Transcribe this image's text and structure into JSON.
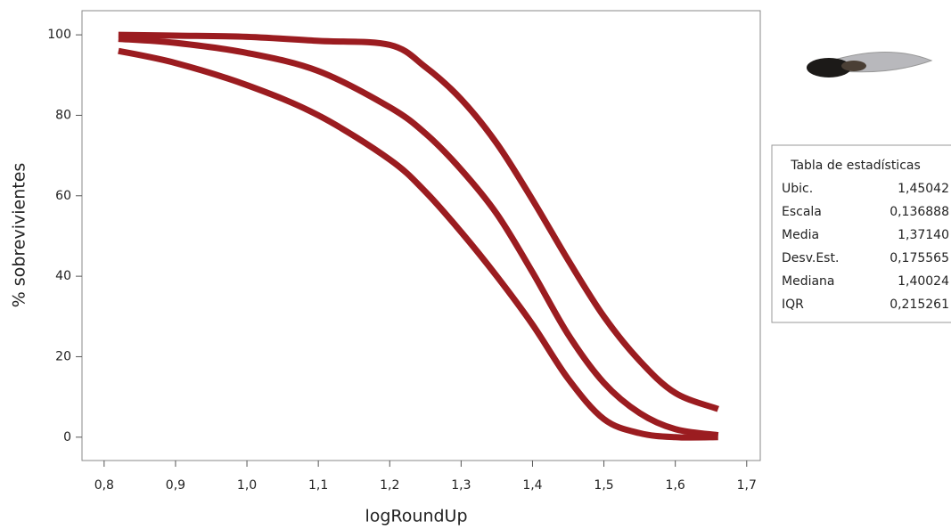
{
  "chart_data": {
    "type": "line",
    "xlabel": "logRoundUp",
    "ylabel": "% sobrevivientes",
    "x": [
      0.82,
      0.9,
      1.0,
      1.1,
      1.2,
      1.25,
      1.3,
      1.35,
      1.4,
      1.45,
      1.5,
      1.55,
      1.6,
      1.66
    ],
    "series": [
      {
        "color": "#9b1c20",
        "values": [
          100,
          99.8,
          99.5,
          98.5,
          97.5,
          92,
          84,
          73,
          59,
          44,
          30,
          19,
          11,
          7
        ]
      },
      {
        "color": "#9b1c20",
        "values": [
          99,
          98,
          95.5,
          91,
          82,
          75.5,
          66.5,
          55.5,
          41,
          25.5,
          13.5,
          6,
          2,
          0.5
        ]
      },
      {
        "color": "#9b1c20",
        "values": [
          96,
          93,
          87.5,
          80,
          69,
          61,
          51,
          40,
          28,
          14.5,
          4.5,
          1,
          0,
          0
        ]
      }
    ],
    "xlim": [
      0.769,
      1.719
    ],
    "ylim": [
      -5.8,
      106
    ],
    "xticks": [
      {
        "value": 0.8,
        "label": "0,8"
      },
      {
        "value": 0.9,
        "label": "0,9"
      },
      {
        "value": 1.0,
        "label": "1,0"
      },
      {
        "value": 1.1,
        "label": "1,1"
      },
      {
        "value": 1.2,
        "label": "1,2"
      },
      {
        "value": 1.3,
        "label": "1,3"
      },
      {
        "value": 1.4,
        "label": "1,4"
      },
      {
        "value": 1.5,
        "label": "1,5"
      },
      {
        "value": 1.6,
        "label": "1,6"
      },
      {
        "value": 1.7,
        "label": "1,7"
      }
    ],
    "yticks": [
      0,
      20,
      40,
      60,
      80,
      100
    ],
    "grid": false
  },
  "stats_table": {
    "title": "Tabla de estadísticas",
    "rows": [
      [
        "Ubic.",
        "1,45042"
      ],
      [
        "Escala",
        "0,136888"
      ],
      [
        "Media",
        "1,37140"
      ],
      [
        "Desv.Est.",
        "0,175565"
      ],
      [
        "Mediana",
        "1,40024"
      ],
      [
        "IQR",
        "0,215261"
      ]
    ]
  }
}
